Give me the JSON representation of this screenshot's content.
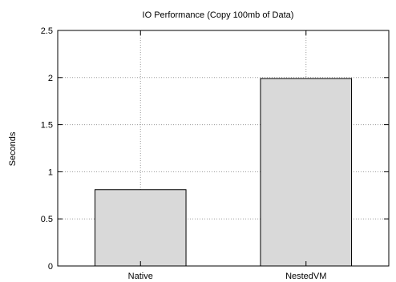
{
  "chart_data": {
    "type": "bar",
    "title": "IO Performance (Copy 100mb of Data)",
    "xlabel": "",
    "ylabel": "Seconds",
    "categories": [
      "Native",
      "NestedVM"
    ],
    "values": [
      0.81,
      1.99
    ],
    "ylim": [
      0,
      2.5
    ],
    "yticks": [
      "0",
      "0.5",
      "1",
      "1.5",
      "2",
      "2.5"
    ],
    "ytick_values": [
      0,
      0.5,
      1,
      1.5,
      2,
      2.5
    ],
    "grid": true,
    "legend": "none",
    "colors": {
      "bar_fill": "#d9d9d9",
      "bar_stroke": "#000000",
      "grid": "#9a9a9a"
    }
  }
}
